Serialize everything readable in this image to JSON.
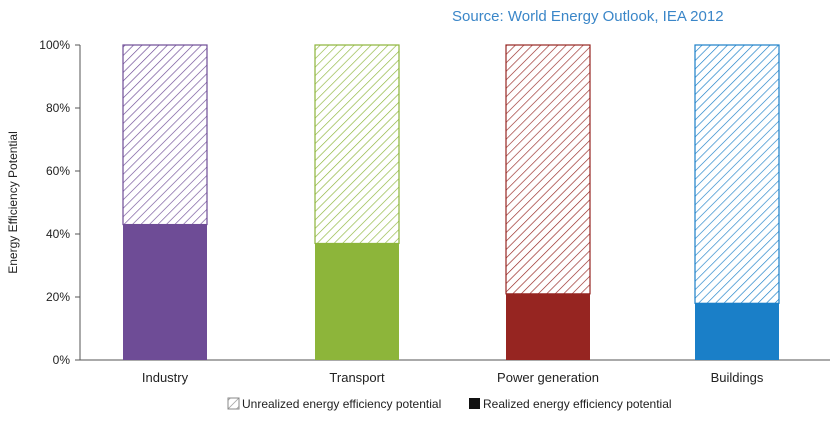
{
  "source_note": "Source: World Energy Outlook, IEA 2012",
  "chart_data": {
    "type": "bar",
    "stacked": true,
    "categories": [
      "Industry",
      "Transport",
      "Power generation",
      "Buildings"
    ],
    "series": [
      {
        "name": "Realized energy efficiency potential",
        "values": [
          43,
          37,
          21,
          18
        ],
        "style": "solid"
      },
      {
        "name": "Unrealized energy efficiency potential",
        "values": [
          57,
          63,
          79,
          82
        ],
        "style": "hatched"
      }
    ],
    "ylabel": "Energy Efficiency Potential",
    "xlabel": "",
    "ylim": [
      0,
      100
    ],
    "yticks": [
      "0%",
      "20%",
      "40%",
      "60%",
      "80%",
      "100%"
    ],
    "grid": false,
    "legend_position": "bottom",
    "legend": [
      "Unrealized energy efficiency potential",
      "Realized energy efficiency potential"
    ],
    "colors": {
      "Industry": "#6e4c96",
      "Transport": "#8db53a",
      "Power generation": "#962521",
      "Buildings": "#1a7fc8"
    },
    "legend_colors": {
      "hatched": "#888888",
      "solid": "#111111"
    },
    "axis_color": "#555555"
  }
}
